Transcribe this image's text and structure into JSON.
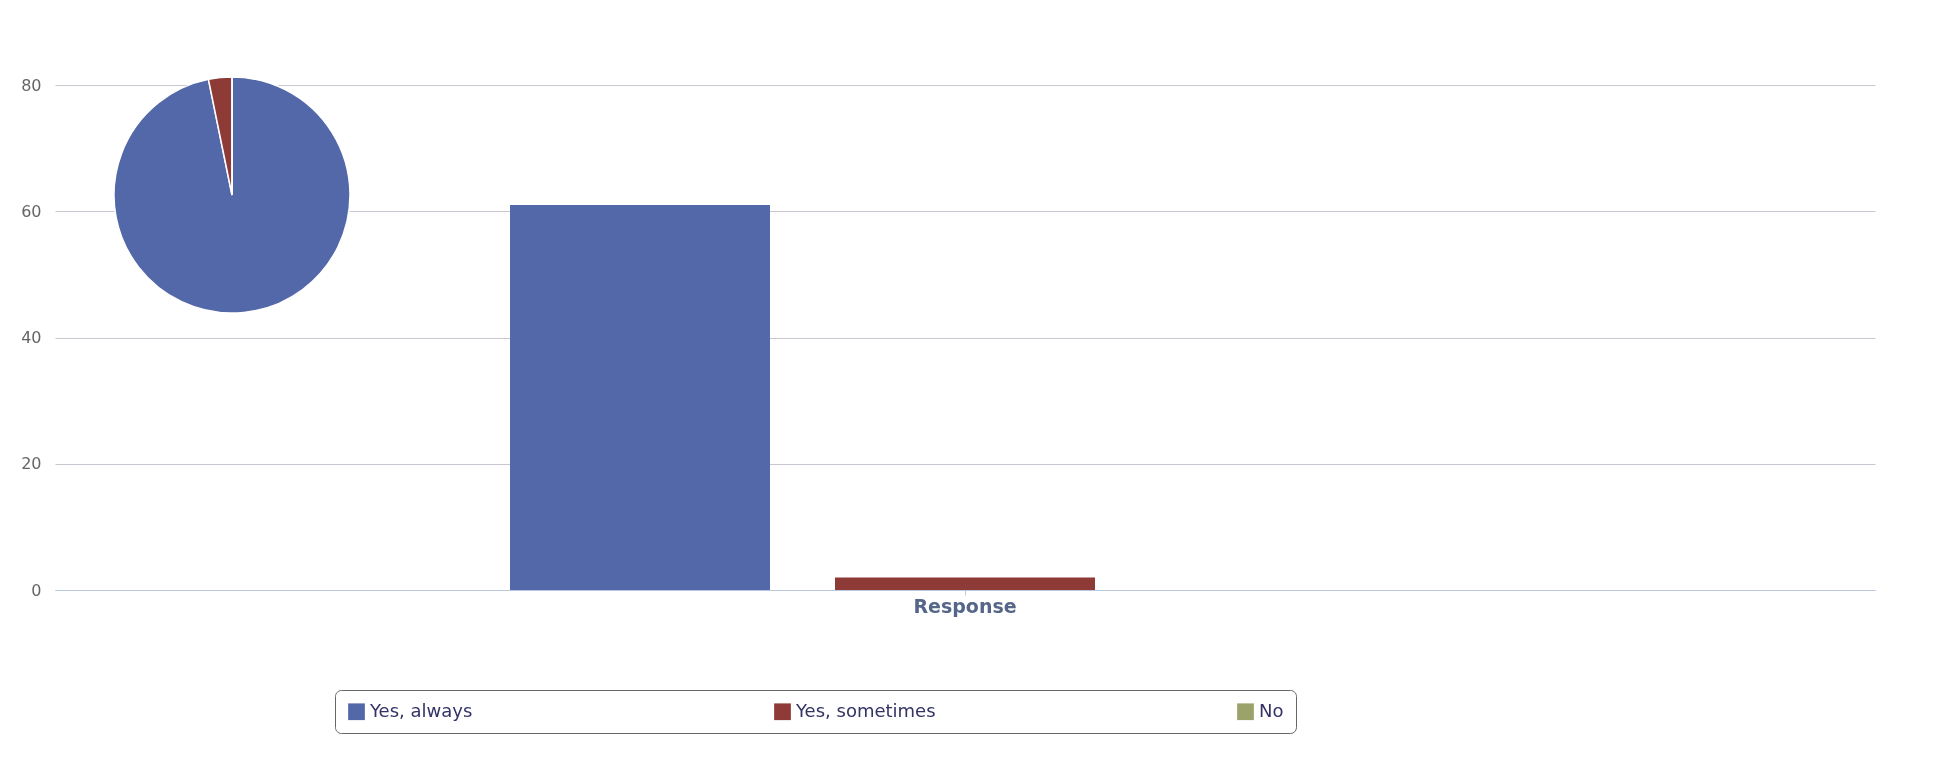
{
  "chart_data": [
    {
      "type": "bar",
      "categories": [
        "Response"
      ],
      "ylim": [
        0,
        80
      ],
      "yticks": [
        0,
        20,
        40,
        60,
        80
      ],
      "grid": "y",
      "legend": "bottom",
      "series": [
        {
          "name": "Yes, always",
          "color": "#5368a8",
          "values": [
            61
          ]
        },
        {
          "name": "Yes, sometimes",
          "color": "#8e3b37",
          "values": [
            2
          ]
        },
        {
          "name": "No",
          "color": "#9ba36a",
          "values": [
            0
          ]
        }
      ]
    },
    {
      "type": "pie",
      "categories": [
        null,
        null,
        null
      ],
      "values": [
        96.8,
        3.2,
        0
      ],
      "colors": [
        "#5368a8",
        "#8e3b37",
        "#9ba36a"
      ]
    }
  ]
}
